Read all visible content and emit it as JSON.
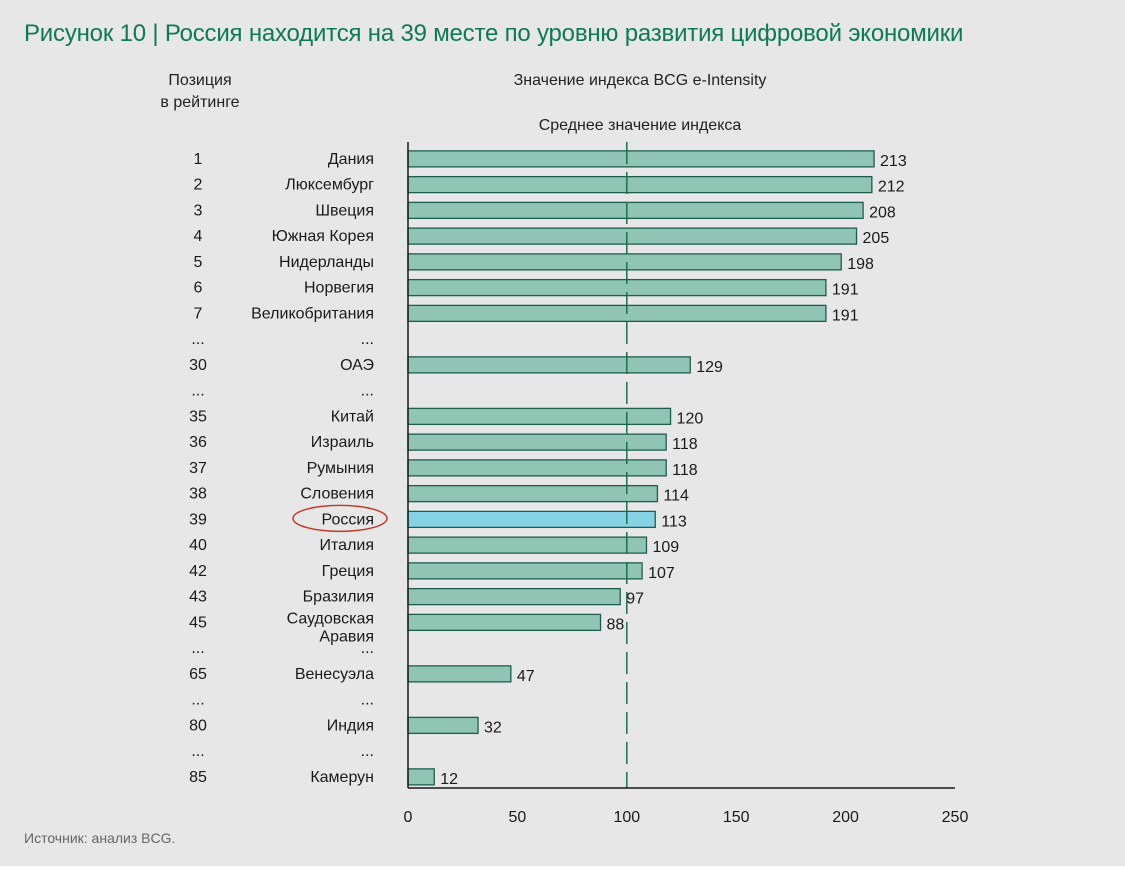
{
  "title": "Рисунок 10 | Россия находится на 39 месте по уровню развития цифровой экономики",
  "source": "Источник: анализ BCG.",
  "colors": {
    "panel": "#e6e7e6",
    "title": "#0e7a55",
    "bar": "#8fc5b2",
    "bar_stroke": "#1e5e4e",
    "highlight_bar": "#87d3e6",
    "highlight_circle": "#c0392b",
    "avg_line": "#1e6e4e"
  },
  "chart_data": {
    "type": "bar",
    "orientation": "horizontal",
    "header_position": "Позиция\nв рейтинге",
    "header_value": "Значение индекса BCG e-Intensity",
    "average_label": "Среднее значение индекса",
    "average_value": 100,
    "xlim": [
      0,
      250
    ],
    "xticks": [
      0,
      50,
      100,
      150,
      200,
      250
    ],
    "highlight": "Россия",
    "rows": [
      {
        "rank": "1",
        "country": "Дания",
        "value": 213
      },
      {
        "rank": "2",
        "country": "Люксембург",
        "value": 212
      },
      {
        "rank": "3",
        "country": "Швеция",
        "value": 208
      },
      {
        "rank": "4",
        "country": "Южная Корея",
        "value": 205
      },
      {
        "rank": "5",
        "country": "Нидерланды",
        "value": 198
      },
      {
        "rank": "6",
        "country": "Норвегия",
        "value": 191
      },
      {
        "rank": "7",
        "country": "Великобритания",
        "value": 191
      },
      {
        "rank": "...",
        "country": "...",
        "value": null
      },
      {
        "rank": "30",
        "country": "ОАЭ",
        "value": 129
      },
      {
        "rank": "...",
        "country": "...",
        "value": null
      },
      {
        "rank": "35",
        "country": "Китай",
        "value": 120
      },
      {
        "rank": "36",
        "country": "Израиль",
        "value": 118
      },
      {
        "rank": "37",
        "country": "Румыния",
        "value": 118
      },
      {
        "rank": "38",
        "country": "Словения",
        "value": 114
      },
      {
        "rank": "39",
        "country": "Россия",
        "value": 113
      },
      {
        "rank": "40",
        "country": "Италия",
        "value": 109
      },
      {
        "rank": "42",
        "country": "Греция",
        "value": 107
      },
      {
        "rank": "43",
        "country": "Бразилия",
        "value": 97
      },
      {
        "rank": "45",
        "country": "Саудовская\nАравия",
        "value": 88
      },
      {
        "rank": "...",
        "country": "...",
        "value": null
      },
      {
        "rank": "65",
        "country": "Венесуэла",
        "value": 47
      },
      {
        "rank": "...",
        "country": "...",
        "value": null
      },
      {
        "rank": "80",
        "country": "Индия",
        "value": 32
      },
      {
        "rank": "...",
        "country": "...",
        "value": null
      },
      {
        "rank": "85",
        "country": "Камерун",
        "value": 12
      }
    ]
  }
}
